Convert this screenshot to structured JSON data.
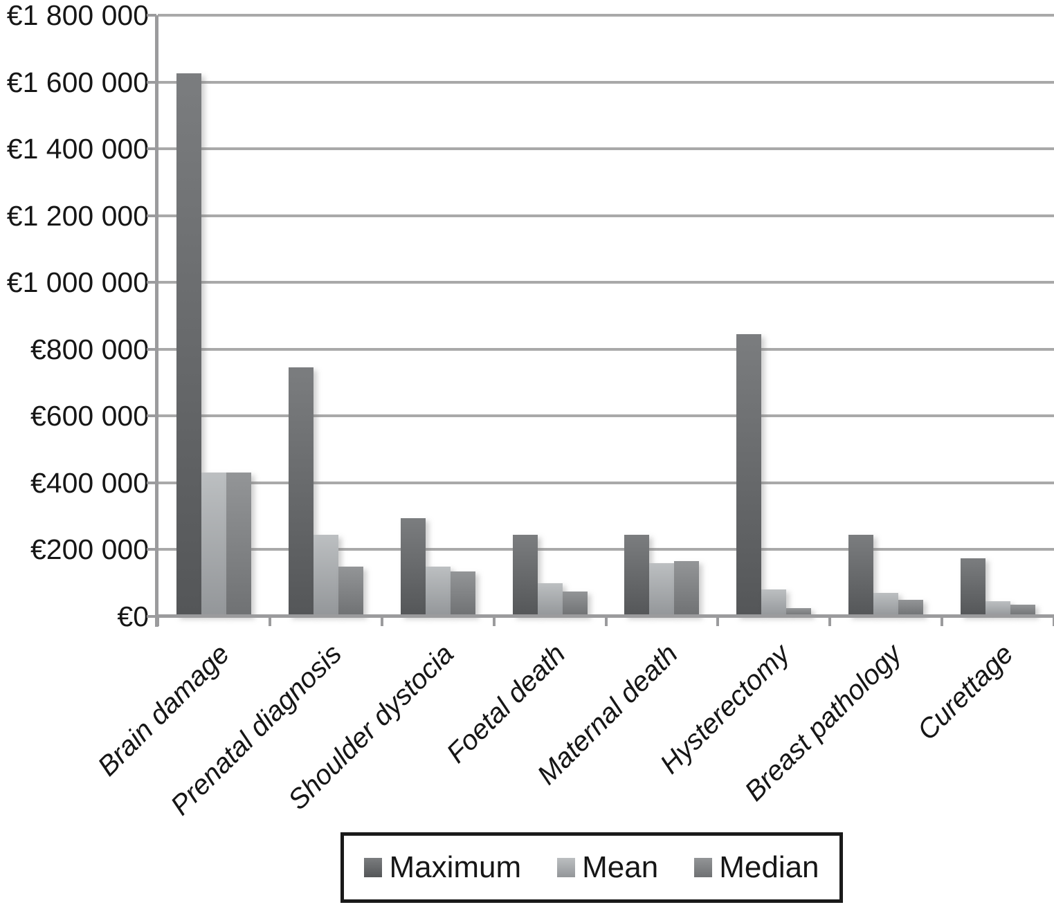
{
  "chart_data": {
    "type": "bar",
    "title": "",
    "xlabel": "",
    "ylabel": "",
    "currency": "EUR",
    "categories": [
      "Brain damage",
      "Prenatal diagnosis",
      "Shoulder dystocia",
      "Foetal death",
      "Maternal death",
      "Hysterectomy",
      "Breast pathology",
      "Curettage"
    ],
    "series": [
      {
        "name": "Maximum",
        "values": [
          1625000,
          745000,
          295000,
          245000,
          245000,
          845000,
          245000,
          175000
        ]
      },
      {
        "name": "Mean",
        "values": [
          430000,
          245000,
          150000,
          100000,
          160000,
          80000,
          70000,
          45000
        ]
      },
      {
        "name": "Median",
        "values": [
          430000,
          150000,
          135000,
          75000,
          165000,
          25000,
          50000,
          35000
        ]
      }
    ],
    "ylim": [
      0,
      1800000
    ],
    "yticks": [
      {
        "value": 0,
        "label": "€0"
      },
      {
        "value": 200000,
        "label": "€200 000"
      },
      {
        "value": 400000,
        "label": "€400 000"
      },
      {
        "value": 600000,
        "label": "€600 000"
      },
      {
        "value": 800000,
        "label": "€800 000"
      },
      {
        "value": 1000000,
        "label": "€1 000 000"
      },
      {
        "value": 1200000,
        "label": "€1 200 000"
      },
      {
        "value": 1400000,
        "label": "€1 400 000"
      },
      {
        "value": 1600000,
        "label": "€1 600 000"
      },
      {
        "value": 1800000,
        "label": "€1 800 000"
      }
    ],
    "grid": true,
    "legend_position": "bottom"
  },
  "colors": {
    "maximum_gradient": [
      "#7b7d7f",
      "#545658"
    ],
    "mean_gradient": [
      "#bcbfc1",
      "#939699"
    ],
    "median_gradient": [
      "#939597",
      "#6f7173"
    ],
    "gridline": "#a9a9a9",
    "axis": "#9b9b9d",
    "text": "#161616"
  }
}
